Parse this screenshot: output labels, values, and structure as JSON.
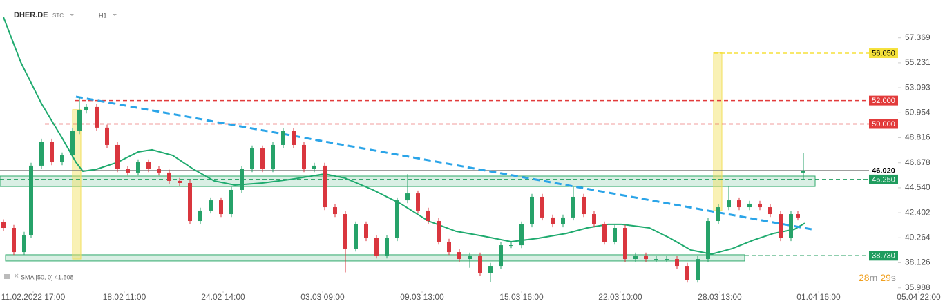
{
  "header": {
    "symbol": "DHER.DE",
    "market": "STC",
    "interval": "H1"
  },
  "chart_data": {
    "type": "candlestick",
    "x": [
      0.5,
      2,
      3.5,
      4.5,
      6,
      7.5,
      9,
      10.5,
      11.5,
      12.5,
      14,
      15.5,
      17,
      18.5,
      20,
      21.5,
      23,
      24.5,
      26,
      27.5,
      29,
      30.5,
      32,
      33.5,
      35,
      36.5,
      38,
      39.5,
      41,
      42.5,
      44,
      45.5,
      47,
      48.5,
      50,
      51.5,
      53,
      54.5,
      56,
      57.5,
      59,
      60.5,
      62,
      63.5,
      65,
      66.5,
      68,
      69.5,
      71,
      72.5,
      74,
      75.5,
      77,
      78.5,
      80,
      81.5,
      83,
      84.5,
      86,
      87.5,
      89,
      90.5,
      92,
      93.5,
      95,
      96.5,
      98,
      99.5,
      101,
      102.5,
      104,
      105.5,
      107,
      108.5,
      110,
      111.5,
      113,
      114.5,
      115.5,
      116.3
    ],
    "open": [
      41.6,
      41.11,
      39.04,
      40.52,
      46.43,
      48.49,
      46.72,
      47.31,
      49.38,
      51.15,
      51.45,
      49.68,
      48.2,
      46.13,
      45.84,
      46.72,
      46.13,
      45.84,
      45.13,
      44.95,
      41.7,
      42.59,
      43.47,
      42.29,
      44.36,
      46.13,
      47.9,
      46.13,
      48.2,
      49.38,
      48.2,
      46.13,
      46.43,
      42.88,
      42.29,
      39.34,
      41.41,
      40.23,
      38.75,
      40.23,
      43.47,
      44.06,
      42.59,
      41.7,
      39.93,
      39.04,
      38.45,
      38.75,
      37.27,
      37.86,
      39.63,
      39.63,
      41.41,
      43.77,
      42,
      41.41,
      42,
      43.77,
      42.29,
      41.41,
      39.93,
      41.11,
      38.45,
      38.75,
      38.45,
      38.45,
      38.45,
      37.86,
      36.68,
      38.45,
      41.7,
      42.88,
      43.47,
      42.88,
      43.18,
      42.88,
      42.29,
      40.23,
      42.29,
      45.84
    ],
    "high": [
      41.85,
      41.36,
      40.77,
      46.68,
      48.74,
      48.74,
      47.56,
      49.63,
      52.3,
      51.7,
      51.7,
      49.93,
      48.45,
      46.38,
      46.97,
      46.97,
      46.38,
      46.09,
      45.38,
      45.2,
      42.84,
      43.72,
      43.72,
      44.61,
      46.38,
      48.15,
      48.15,
      48.45,
      49.63,
      49.63,
      48.45,
      46.68,
      46.68,
      43.13,
      42.54,
      41.66,
      41.66,
      40.48,
      40.48,
      43.72,
      45.7,
      44.31,
      42.84,
      41.95,
      40.18,
      39.29,
      39,
      39,
      38.11,
      39.88,
      39.88,
      41.66,
      44.02,
      44.02,
      42.25,
      42.25,
      44.6,
      44.02,
      42.54,
      41.66,
      41.36,
      41.36,
      39,
      39,
      38.7,
      38.7,
      38.7,
      38.11,
      38.7,
      41.95,
      43.13,
      44.7,
      43.72,
      43.43,
      43.43,
      43.13,
      42.54,
      42.54,
      42.54,
      47.49
    ],
    "low": [
      40.86,
      38.79,
      38.79,
      40.27,
      46.18,
      46.47,
      46.47,
      47.06,
      49.13,
      50.9,
      49.43,
      47.95,
      45.88,
      45.59,
      45.59,
      45.88,
      45.59,
      44.88,
      44.7,
      41.45,
      41.45,
      42.34,
      42.04,
      42.04,
      44.11,
      45.88,
      45.88,
      45.88,
      47.95,
      47.95,
      45.88,
      45.88,
      42.63,
      42.04,
      37.3,
      39.09,
      39.98,
      38.5,
      38.5,
      39.98,
      43.22,
      42.34,
      41.45,
      39.68,
      38.79,
      38.2,
      37.7,
      37.02,
      36.5,
      37.61,
      39.38,
      39.38,
      41.16,
      41.75,
      41.16,
      41.16,
      41.75,
      42.04,
      41.16,
      39.68,
      39.68,
      38.2,
      38.2,
      38.2,
      38.2,
      38.2,
      37.61,
      36.43,
      36.43,
      38.2,
      41.45,
      42.63,
      42.63,
      42.63,
      42.63,
      42.04,
      39.98,
      39.98,
      41.75,
      45.25
    ],
    "close": [
      41.11,
      39.04,
      40.52,
      46.43,
      48.49,
      46.72,
      47.31,
      49.38,
      51.15,
      51.45,
      49.68,
      48.2,
      46.13,
      45.84,
      46.72,
      46.13,
      45.84,
      45.13,
      44.95,
      41.7,
      42.59,
      43.47,
      42.29,
      44.36,
      46.13,
      47.9,
      46.13,
      48.2,
      49.38,
      48.2,
      46.13,
      46.43,
      42.88,
      42.29,
      39.34,
      41.41,
      40.23,
      38.75,
      40.23,
      43.47,
      44.06,
      42.59,
      41.7,
      39.93,
      39.04,
      38.45,
      38.75,
      37.27,
      37.86,
      39.63,
      39.63,
      41.41,
      43.77,
      42,
      41.41,
      42,
      43.77,
      42.29,
      41.41,
      39.93,
      41.11,
      38.45,
      38.75,
      38.45,
      38.45,
      38.45,
      37.86,
      36.68,
      38.45,
      41.7,
      42.88,
      43.47,
      42.88,
      43.18,
      42.88,
      42.29,
      40.23,
      42.29,
      42,
      46.02
    ],
    "up_color": "#26a269",
    "down_color": "#d9363e",
    "xlim": [
      0,
      136.8
    ],
    "xticks": [
      {
        "value": 4.8,
        "label": "11.02.2022 17:00"
      },
      {
        "value": 18,
        "label": "18.02 11:00"
      },
      {
        "value": 32.3,
        "label": "24.02 14:00"
      },
      {
        "value": 46.7,
        "label": "03.03 09:00"
      },
      {
        "value": 61.1,
        "label": "09.03 13:00"
      },
      {
        "value": 75.5,
        "label": "15.03 16:00"
      },
      {
        "value": 89.8,
        "label": "22.03 10:00"
      },
      {
        "value": 104.2,
        "label": "28.03 13:00"
      },
      {
        "value": 118.5,
        "label": "01.04 16:00"
      },
      {
        "value": 133,
        "label": "05.04 22:00"
      }
    ],
    "ylim": [
      35.5,
      60.6
    ],
    "yticks": [
      35.988,
      38.126,
      40.264,
      42.402,
      {
        "value": 44.54,
        "label": "44.540"
      },
      46.678,
      48.816,
      50.954,
      53.093,
      55.231,
      57.369
    ],
    "grid": false,
    "sma": {
      "label": "SMA [50, 0] 41.508",
      "color": "#1eaa6e",
      "x": [
        0.5,
        3,
        6,
        9,
        11,
        12,
        14,
        17,
        20,
        22,
        25,
        28,
        31,
        34,
        38,
        42,
        47,
        50,
        54,
        58,
        62,
        66,
        70,
        74,
        78,
        82,
        85,
        88,
        90,
        94,
        97,
        100,
        103,
        106,
        109,
        112,
        115,
        116.5
      ],
      "values": [
        59.13,
        55.29,
        51.74,
        48.79,
        46.72,
        45.95,
        46.13,
        46.72,
        47.61,
        47.79,
        47.31,
        46.13,
        45.13,
        44.77,
        44.95,
        45.25,
        45.72,
        45.36,
        44.36,
        43.18,
        41.7,
        40.82,
        40.4,
        39.93,
        40.23,
        40.64,
        41.11,
        41.41,
        41.41,
        41.11,
        40.23,
        39.22,
        38.87,
        39.34,
        40.05,
        40.64,
        40.99,
        41.51
      ]
    },
    "zones": [
      {
        "x": [
          0,
          118
        ],
        "y": [
          44.65,
          45.54
        ],
        "color": "#2ea86a"
      },
      {
        "x": [
          0.8,
          107.8
        ],
        "y": [
          38.28,
          38.81
        ],
        "color": "#2ea86a"
      }
    ],
    "highlights": [
      {
        "x": [
          10.5,
          11.7
        ],
        "y": [
          38.45,
          51.22
        ],
        "color": "#f2df5a"
      },
      {
        "x": [
          103.3,
          104.5
        ],
        "y": [
          42.59,
          56.11
        ],
        "color": "#f2df5a"
      }
    ],
    "trendline": {
      "x": [
        11,
        117.5
      ],
      "y": [
        52.33,
        40.99
      ],
      "color": "#2aa4e8"
    },
    "levels": [
      {
        "value": 56.05,
        "label": "56.050",
        "color": "#f5e13a",
        "text_color": "#000000",
        "from": 103.3,
        "style": "dashed"
      },
      {
        "value": 52,
        "label": "52.000",
        "color": "#e23b3b",
        "text_color": "#ffffff",
        "from": 10.8,
        "style": "dashed"
      },
      {
        "value": 50,
        "label": "50.000",
        "color": "#e23b3b",
        "text_color": "#ffffff",
        "from": 6.5,
        "style": "dashed"
      },
      {
        "value": 46.02,
        "label": "46.020",
        "color": "#666666",
        "text_color": "#000000",
        "from": 0,
        "style": "solid"
      },
      {
        "value": 45.25,
        "label": "45.250",
        "color": "#1f9c5e",
        "text_color": "#ffffff",
        "from": 0,
        "style": "dashed"
      },
      {
        "value": 38.73,
        "label": "38.730",
        "color": "#1f9c5e",
        "text_color": "#ffffff",
        "from": 107.8,
        "style": "dashed"
      }
    ]
  },
  "countdown": {
    "minutes": "28",
    "minutes_unit": "m",
    "seconds": "29",
    "seconds_unit": "s"
  }
}
